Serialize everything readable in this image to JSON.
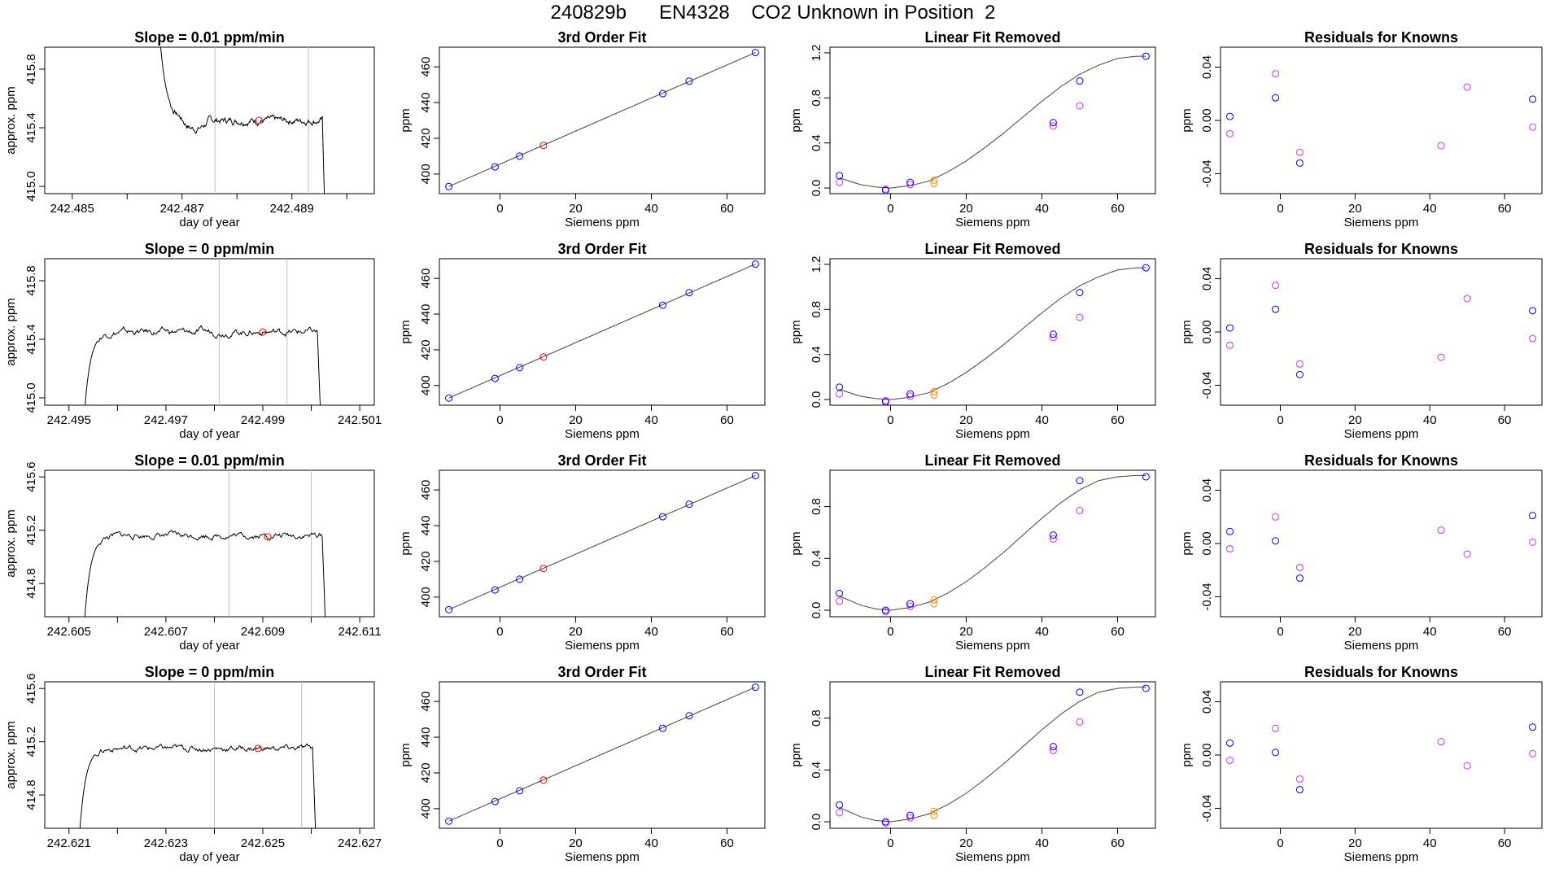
{
  "figure_title": "240829b      EN4328    CO2 Unknown in Position  2",
  "colors": {
    "trace": "#000000",
    "known_a": "#0000ff",
    "known_b": "#cc33ff",
    "current": "#ff0000",
    "unknown_pts": "#ff8c00",
    "window_line": "#bebebe",
    "fit_line": "#444444"
  },
  "chart_data": [
    {
      "type": "line",
      "panel": "timeseries",
      "row": 0,
      "title": "Slope =  0.01  ppm/min",
      "xlabel": "day of year",
      "ylabel": "approx. ppm",
      "xlim": [
        242.4845,
        242.4905
      ],
      "ylim": [
        414.95,
        415.95
      ],
      "xticks": [
        242.485,
        242.486,
        242.487,
        242.488,
        242.489,
        242.49
      ],
      "xticklabels": [
        "242.485",
        "",
        "242.487",
        "",
        "242.489",
        ""
      ],
      "yticks": [
        415.0,
        415.4,
        415.8
      ],
      "yticklabels": [
        "415.0",
        "415.4",
        "415.8"
      ],
      "window": [
        242.4876,
        242.4893
      ],
      "marker": {
        "x": 242.4884,
        "y": 415.45
      },
      "trace": {
        "t_start": 242.4866,
        "t_end": 242.4896,
        "start_y": 416.0,
        "plateau": 415.45,
        "end_y": 414.8,
        "rise": "fall",
        "dip": -0.06
      }
    },
    {
      "type": "line",
      "panel": "timeseries",
      "row": 1,
      "title": "Slope =  0  ppm/min",
      "xlabel": "day of year",
      "ylabel": "approx. ppm",
      "xlim": [
        242.4945,
        242.5013
      ],
      "ylim": [
        414.95,
        415.95
      ],
      "xticks": [
        242.495,
        242.496,
        242.497,
        242.498,
        242.499,
        242.5,
        242.501
      ],
      "xticklabels": [
        "242.495",
        "",
        "242.497",
        "",
        "242.499",
        "",
        "242.501"
      ],
      "yticks": [
        415.0,
        415.4,
        415.8
      ],
      "yticklabels": [
        "415.0",
        "415.4",
        "415.8"
      ],
      "window": [
        242.4981,
        242.4995
      ],
      "marker": {
        "x": 242.499,
        "y": 415.45
      },
      "trace": {
        "t_start": 242.4953,
        "t_end": 242.5002,
        "start_y": 414.8,
        "plateau": 415.45,
        "end_y": 414.8,
        "rise": "rise",
        "dip": 0
      }
    },
    {
      "type": "line",
      "panel": "timeseries",
      "row": 2,
      "title": "Slope =  0.01  ppm/min",
      "xlabel": "day of year",
      "ylabel": "approx. ppm",
      "xlim": [
        242.6045,
        242.6113
      ],
      "ylim": [
        414.55,
        415.65
      ],
      "xticks": [
        242.605,
        242.606,
        242.607,
        242.608,
        242.609,
        242.61,
        242.611
      ],
      "xticklabels": [
        "242.605",
        "",
        "242.607",
        "",
        "242.609",
        "",
        "242.611"
      ],
      "yticks": [
        414.8,
        415.2,
        415.6
      ],
      "yticklabels": [
        "414.8",
        "415.2",
        "415.6"
      ],
      "window": [
        242.6083,
        242.61
      ],
      "marker": {
        "x": 242.6091,
        "y": 415.15
      },
      "trace": {
        "t_start": 242.6053,
        "t_end": 242.6103,
        "start_y": 414.4,
        "plateau": 415.16,
        "end_y": 414.4,
        "rise": "rise",
        "dip": 0
      }
    },
    {
      "type": "line",
      "panel": "timeseries",
      "row": 3,
      "title": "Slope =  0  ppm/min",
      "xlabel": "day of year",
      "ylabel": "approx. ppm",
      "xlim": [
        242.6205,
        242.6273
      ],
      "ylim": [
        414.55,
        415.65
      ],
      "xticks": [
        242.621,
        242.622,
        242.623,
        242.624,
        242.625,
        242.626,
        242.627
      ],
      "xticklabels": [
        "242.621",
        "",
        "242.623",
        "",
        "242.625",
        "",
        "242.627"
      ],
      "yticks": [
        414.8,
        415.2,
        415.6
      ],
      "yticklabels": [
        "414.8",
        "415.2",
        "415.6"
      ],
      "window": [
        242.624,
        242.6258
      ],
      "marker": {
        "x": 242.6249,
        "y": 415.15
      },
      "trace": {
        "t_start": 242.6212,
        "t_end": 242.6261,
        "start_y": 414.4,
        "plateau": 415.15,
        "end_y": 414.4,
        "rise": "rise",
        "dip": 0
      }
    },
    {
      "type": "scatter",
      "panel": "fit",
      "row": 0,
      "title": "3rd Order Fit",
      "xlabel": "Siemens ppm",
      "ylabel": "ppm",
      "xlim": [
        -16,
        70
      ],
      "ylim": [
        389,
        471
      ],
      "xticks": [
        0,
        20,
        40,
        60
      ],
      "yticks": [
        400,
        420,
        440,
        460
      ],
      "line": {
        "x": [
          -13.5,
          67.5
        ],
        "y": [
          393,
          468
        ]
      },
      "known_x": [
        -13.5,
        -1.3,
        5.2,
        43,
        50,
        67.5
      ],
      "known_y": [
        393,
        404,
        410,
        445,
        452,
        468
      ],
      "current": {
        "x": 11.5,
        "y": 416
      }
    },
    {
      "type": "scatter",
      "panel": "fit",
      "row": 1,
      "title": "3rd Order Fit",
      "xlabel": "Siemens ppm",
      "ylabel": "ppm",
      "xlim": [
        -16,
        70
      ],
      "ylim": [
        389,
        471
      ],
      "xticks": [
        0,
        20,
        40,
        60
      ],
      "yticks": [
        400,
        420,
        440,
        460
      ],
      "line": {
        "x": [
          -13.5,
          67.5
        ],
        "y": [
          393,
          468
        ]
      },
      "known_x": [
        -13.5,
        -1.3,
        5.2,
        43,
        50,
        67.5
      ],
      "known_y": [
        393,
        404,
        410,
        445,
        452,
        468
      ],
      "current": {
        "x": 11.5,
        "y": 416
      }
    },
    {
      "type": "scatter",
      "panel": "fit",
      "row": 2,
      "title": "3rd Order Fit",
      "xlabel": "Siemens ppm",
      "ylabel": "ppm",
      "xlim": [
        -16,
        70
      ],
      "ylim": [
        389,
        471
      ],
      "xticks": [
        0,
        20,
        40,
        60
      ],
      "yticks": [
        400,
        420,
        440,
        460
      ],
      "line": {
        "x": [
          -13.5,
          67.5
        ],
        "y": [
          393,
          468
        ]
      },
      "known_x": [
        -13.5,
        -1.3,
        5.2,
        43,
        50,
        67.5
      ],
      "known_y": [
        393,
        404,
        410,
        445,
        452,
        468
      ],
      "current": {
        "x": 11.5,
        "y": 416
      }
    },
    {
      "type": "scatter",
      "panel": "fit",
      "row": 3,
      "title": "3rd Order Fit",
      "xlabel": "Siemens ppm",
      "ylabel": "ppm",
      "xlim": [
        -16,
        70
      ],
      "ylim": [
        389,
        471
      ],
      "xticks": [
        0,
        20,
        40,
        60
      ],
      "yticks": [
        400,
        420,
        440,
        460
      ],
      "line": {
        "x": [
          -13.5,
          67.5
        ],
        "y": [
          393,
          468
        ]
      },
      "known_x": [
        -13.5,
        -1.3,
        5.2,
        43,
        50,
        67.5
      ],
      "known_y": [
        393,
        404,
        410,
        445,
        452,
        468
      ],
      "current": {
        "x": 11.5,
        "y": 416
      }
    },
    {
      "type": "scatter",
      "panel": "linear_removed",
      "row": 0,
      "title": "Linear Fit Removed",
      "xlabel": "Siemens ppm",
      "ylabel": "ppm",
      "xlim": [
        -16,
        70
      ],
      "ylim": [
        -0.05,
        1.25
      ],
      "xticks": [
        0,
        20,
        40,
        60
      ],
      "yticks": [
        0.0,
        0.4,
        0.8,
        1.2
      ],
      "curve": {
        "x": [
          -13.5,
          -8,
          -4,
          0,
          5,
          10,
          15,
          20,
          25,
          30,
          35,
          40,
          45,
          50,
          55,
          60,
          65,
          67.5
        ],
        "y": [
          0.09,
          0.03,
          0.01,
          0.0,
          0.02,
          0.06,
          0.14,
          0.24,
          0.36,
          0.49,
          0.63,
          0.77,
          0.9,
          1.01,
          1.09,
          1.15,
          1.17,
          1.17
        ]
      },
      "series_a_x": [
        -13.5,
        -1.3,
        5.2,
        43,
        50,
        67.5
      ],
      "series_a_y": [
        0.11,
        -0.02,
        0.05,
        0.58,
        0.95,
        1.17
      ],
      "series_b_x": [
        -13.5,
        -1.3,
        5.2,
        43,
        50
      ],
      "series_b_y": [
        0.05,
        -0.01,
        0.03,
        0.55,
        0.73
      ],
      "unknown_x": [
        11.5,
        11.5
      ],
      "unknown_y": [
        0.07,
        0.04
      ]
    },
    {
      "type": "scatter",
      "panel": "linear_removed",
      "row": 1,
      "title": "Linear Fit Removed",
      "xlabel": "Siemens ppm",
      "ylabel": "ppm",
      "xlim": [
        -16,
        70
      ],
      "ylim": [
        -0.05,
        1.25
      ],
      "xticks": [
        0,
        20,
        40,
        60
      ],
      "yticks": [
        0.0,
        0.4,
        0.8,
        1.2
      ],
      "curve": {
        "x": [
          -13.5,
          -8,
          -4,
          0,
          5,
          10,
          15,
          20,
          25,
          30,
          35,
          40,
          45,
          50,
          55,
          60,
          65,
          67.5
        ],
        "y": [
          0.09,
          0.03,
          0.01,
          0.0,
          0.02,
          0.06,
          0.14,
          0.24,
          0.36,
          0.49,
          0.63,
          0.77,
          0.9,
          1.01,
          1.09,
          1.15,
          1.17,
          1.17
        ]
      },
      "series_a_x": [
        -13.5,
        -1.3,
        5.2,
        43,
        50,
        67.5
      ],
      "series_a_y": [
        0.11,
        -0.02,
        0.05,
        0.58,
        0.95,
        1.17
      ],
      "series_b_x": [
        -13.5,
        -1.3,
        5.2,
        43,
        50
      ],
      "series_b_y": [
        0.05,
        -0.01,
        0.03,
        0.55,
        0.73
      ],
      "unknown_x": [
        11.5,
        11.5
      ],
      "unknown_y": [
        0.07,
        0.04
      ]
    },
    {
      "type": "scatter",
      "panel": "linear_removed",
      "row": 2,
      "title": "Linear Fit Removed",
      "xlabel": "Siemens ppm",
      "ylabel": "ppm",
      "xlim": [
        -16,
        70
      ],
      "ylim": [
        -0.05,
        1.08
      ],
      "xticks": [
        0,
        20,
        40,
        60
      ],
      "yticks": [
        0.0,
        0.4,
        0.8
      ],
      "curve": {
        "x": [
          -13.5,
          -8,
          -4,
          0,
          5,
          10,
          15,
          20,
          25,
          30,
          35,
          40,
          45,
          50,
          55,
          60,
          65,
          67.5
        ],
        "y": [
          0.11,
          0.04,
          0.01,
          0.0,
          0.02,
          0.06,
          0.13,
          0.22,
          0.33,
          0.45,
          0.58,
          0.71,
          0.83,
          0.93,
          1.0,
          1.03,
          1.04,
          1.04
        ]
      },
      "series_a_x": [
        -13.5,
        -1.3,
        5.2,
        43,
        50,
        67.5
      ],
      "series_a_y": [
        0.13,
        0.0,
        0.05,
        0.58,
        1.0,
        1.03
      ],
      "series_b_x": [
        -13.5,
        -1.3,
        5.2,
        43,
        50
      ],
      "series_b_y": [
        0.07,
        -0.01,
        0.03,
        0.55,
        0.77
      ],
      "unknown_x": [
        11.5,
        11.5
      ],
      "unknown_y": [
        0.08,
        0.05
      ]
    },
    {
      "type": "scatter",
      "panel": "linear_removed",
      "row": 3,
      "title": "Linear Fit Removed",
      "xlabel": "Siemens ppm",
      "ylabel": "ppm",
      "xlim": [
        -16,
        70
      ],
      "ylim": [
        -0.05,
        1.08
      ],
      "xticks": [
        0,
        20,
        40,
        60
      ],
      "yticks": [
        0.0,
        0.4,
        0.8
      ],
      "curve": {
        "x": [
          -13.5,
          -8,
          -4,
          0,
          5,
          10,
          15,
          20,
          25,
          30,
          35,
          40,
          45,
          50,
          55,
          60,
          65,
          67.5
        ],
        "y": [
          0.11,
          0.04,
          0.01,
          0.0,
          0.02,
          0.06,
          0.13,
          0.22,
          0.33,
          0.45,
          0.58,
          0.71,
          0.83,
          0.93,
          1.0,
          1.03,
          1.04,
          1.04
        ]
      },
      "series_a_x": [
        -13.5,
        -1.3,
        5.2,
        43,
        50,
        67.5
      ],
      "series_a_y": [
        0.13,
        0.0,
        0.05,
        0.58,
        1.0,
        1.03
      ],
      "series_b_x": [
        -13.5,
        -1.3,
        5.2,
        43,
        50
      ],
      "series_b_y": [
        0.07,
        -0.01,
        0.03,
        0.55,
        0.77
      ],
      "unknown_x": [
        11.5,
        11.5
      ],
      "unknown_y": [
        0.08,
        0.05
      ]
    },
    {
      "type": "scatter",
      "panel": "residuals",
      "row": 0,
      "title": "Residuals for Knowns",
      "xlabel": "Siemens ppm",
      "ylabel": "ppm",
      "xlim": [
        -16,
        70
      ],
      "ylim": [
        -0.055,
        0.055
      ],
      "xticks": [
        0,
        20,
        40,
        60
      ],
      "yticks": [
        -0.04,
        0.0,
        0.04
      ],
      "yticklabels": [
        "-0.04",
        "0.00",
        "0.04"
      ],
      "series_a_x": [
        -13.5,
        -1.3,
        5.2,
        67.5
      ],
      "series_a_y": [
        0.003,
        0.017,
        -0.032,
        0.016
      ],
      "series_b_x": [
        -13.5,
        -1.3,
        5.2,
        43,
        50,
        67.5
      ],
      "series_b_y": [
        -0.01,
        0.035,
        -0.024,
        -0.019,
        0.025,
        -0.005
      ]
    },
    {
      "type": "scatter",
      "panel": "residuals",
      "row": 1,
      "title": "Residuals for Knowns",
      "xlabel": "Siemens ppm",
      "ylabel": "ppm",
      "xlim": [
        -16,
        70
      ],
      "ylim": [
        -0.055,
        0.055
      ],
      "xticks": [
        0,
        20,
        40,
        60
      ],
      "yticks": [
        -0.04,
        0.0,
        0.04
      ],
      "yticklabels": [
        "-0.04",
        "0.00",
        "0.04"
      ],
      "series_a_x": [
        -13.5,
        -1.3,
        5.2,
        67.5
      ],
      "series_a_y": [
        0.003,
        0.017,
        -0.032,
        0.016
      ],
      "series_b_x": [
        -13.5,
        -1.3,
        5.2,
        43,
        50,
        67.5
      ],
      "series_b_y": [
        -0.01,
        0.035,
        -0.024,
        -0.019,
        0.025,
        -0.005
      ]
    },
    {
      "type": "scatter",
      "panel": "residuals",
      "row": 2,
      "title": "Residuals for Knowns",
      "xlabel": "Siemens ppm",
      "ylabel": "ppm",
      "xlim": [
        -16,
        70
      ],
      "ylim": [
        -0.055,
        0.055
      ],
      "xticks": [
        0,
        20,
        40,
        60
      ],
      "yticks": [
        -0.04,
        0.0,
        0.04
      ],
      "yticklabels": [
        "-0.04",
        "0.00",
        "0.04"
      ],
      "series_a_x": [
        -13.5,
        -1.3,
        5.2,
        67.5
      ],
      "series_a_y": [
        0.009,
        0.002,
        -0.026,
        0.021
      ],
      "series_b_x": [
        -13.5,
        -1.3,
        5.2,
        43,
        50,
        67.5
      ],
      "series_b_y": [
        -0.004,
        0.02,
        -0.018,
        0.01,
        -0.008,
        0.001
      ]
    },
    {
      "type": "scatter",
      "panel": "residuals",
      "row": 3,
      "title": "Residuals for Knowns",
      "xlabel": "Siemens ppm",
      "ylabel": "ppm",
      "xlim": [
        -16,
        70
      ],
      "ylim": [
        -0.055,
        0.055
      ],
      "xticks": [
        0,
        20,
        40,
        60
      ],
      "yticks": [
        -0.04,
        0.0,
        0.04
      ],
      "yticklabels": [
        "-0.04",
        "0.00",
        "0.04"
      ],
      "series_a_x": [
        -13.5,
        -1.3,
        5.2,
        67.5
      ],
      "series_a_y": [
        0.009,
        0.002,
        -0.026,
        0.021
      ],
      "series_b_x": [
        -13.5,
        -1.3,
        5.2,
        43,
        50,
        67.5
      ],
      "series_b_y": [
        -0.004,
        0.02,
        -0.018,
        0.01,
        -0.008,
        0.001
      ]
    }
  ]
}
